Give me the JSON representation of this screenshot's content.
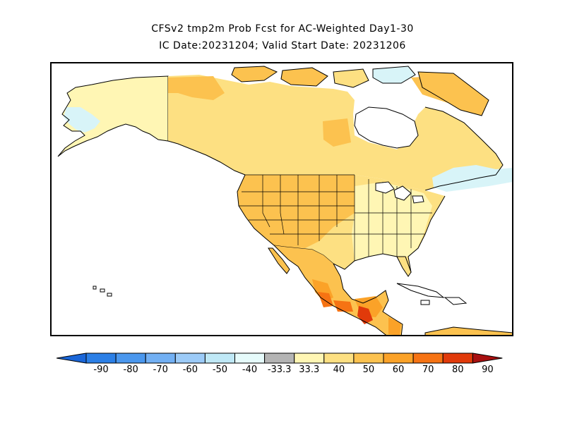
{
  "title": {
    "line1": "CFSv2 tmp2m Prob Fcst for AC-Weighted Day1-30",
    "line2": "IC Date:20231204; Valid Start Date: 20231206"
  },
  "colorbar": {
    "labels": [
      "-90",
      "-80",
      "-70",
      "-60",
      "-50",
      "-40",
      "-33.3",
      "33.3",
      "40",
      "50",
      "60",
      "70",
      "80",
      "90"
    ],
    "left_arrow_color": "#1a66d8",
    "right_arrow_color": "#a81010",
    "colors": [
      "#2b7fe6",
      "#4a97ee",
      "#72b0f4",
      "#9ccbf8",
      "#bfe8f6",
      "#e6fbfb",
      "#b4b4b4",
      "#fff6b4",
      "#fde082",
      "#fcc24f",
      "#fba228",
      "#f67313",
      "#e13a0a"
    ]
  },
  "map": {
    "ocean_color": "#ffffff",
    "coast_color": "#000000",
    "category_colors": {
      "below_40_50": "#d8f4f8",
      "below_33_40": "#ebfbfb",
      "above_33_40": "#fff6b4",
      "above_40_50": "#fde082",
      "above_50_60": "#fcc24f",
      "above_60_70": "#fba228",
      "above_70_80": "#f67313",
      "above_80_90": "#e13a0a"
    }
  }
}
